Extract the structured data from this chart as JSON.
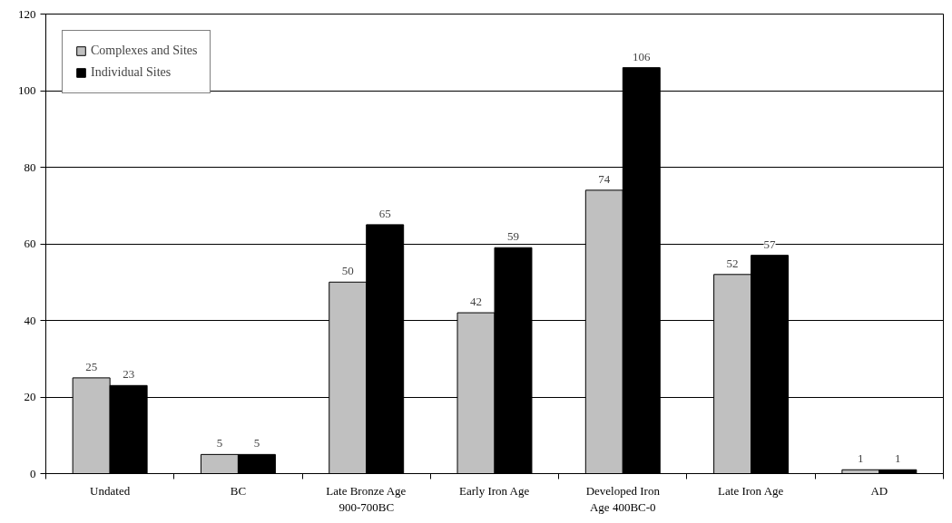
{
  "chart_data": {
    "type": "bar",
    "categories": [
      "Undated",
      "BC",
      "Late Bronze Age\n900-700BC",
      "Early Iron Age",
      "Developed Iron\nAge 400BC-0",
      "Late Iron Age",
      "AD"
    ],
    "series": [
      {
        "name": "Complexes and Sites",
        "color": "#c0c0c0",
        "values": [
          25,
          5,
          50,
          42,
          74,
          52,
          1
        ]
      },
      {
        "name": "Individual Sites",
        "color": "#000000",
        "values": [
          23,
          5,
          65,
          59,
          106,
          57,
          1
        ]
      }
    ],
    "ylim": [
      0,
      120
    ],
    "yticks": [
      0,
      20,
      40,
      60,
      80,
      100,
      120
    ],
    "grid": "y",
    "legend": "top left",
    "data_labels": true
  }
}
